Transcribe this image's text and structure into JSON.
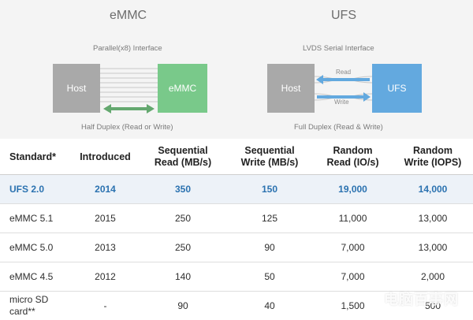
{
  "emmc_diagram": {
    "title": "eMMC",
    "interface": "Parallel(x8) Interface",
    "host_label": "Host",
    "device_label": "eMMC",
    "caption": "Half Duplex (Read or Write)",
    "colors": {
      "host": "#a9a9a9",
      "device": "#79c98a"
    }
  },
  "ufs_diagram": {
    "title": "UFS",
    "interface": "LVDS Serial Interface",
    "host_label": "Host",
    "device_label": "UFS",
    "read_label": "Read",
    "write_label": "Write",
    "caption": "Full Duplex (Read & Write)",
    "colors": {
      "host": "#a9a9a9",
      "device": "#63a9df"
    }
  },
  "table": {
    "headers": [
      [
        "Standard*"
      ],
      [
        "Introduced"
      ],
      [
        "Sequential",
        "Read (MB/s)"
      ],
      [
        "Sequential",
        "Write (MB/s)"
      ],
      [
        "Random",
        "Read (IO/s)"
      ],
      [
        "Random",
        "Write (IOPS)"
      ]
    ],
    "rows": [
      {
        "cells": [
          [
            "UFS 2.0"
          ],
          [
            "2014"
          ],
          [
            "350"
          ],
          [
            "150"
          ],
          [
            "19,000"
          ],
          [
            "14,000"
          ]
        ],
        "highlight": true
      },
      {
        "cells": [
          [
            "eMMC 5.1"
          ],
          [
            "2015"
          ],
          [
            "250"
          ],
          [
            "125"
          ],
          [
            "11,000"
          ],
          [
            "13,000"
          ]
        ],
        "highlight": false
      },
      {
        "cells": [
          [
            "eMMC 5.0"
          ],
          [
            "2013"
          ],
          [
            "250"
          ],
          [
            "90"
          ],
          [
            "7,000"
          ],
          [
            "13,000"
          ]
        ],
        "highlight": false
      },
      {
        "cells": [
          [
            "eMMC 4.5"
          ],
          [
            "2012"
          ],
          [
            "140"
          ],
          [
            "50"
          ],
          [
            "7,000"
          ],
          [
            "2,000"
          ]
        ],
        "highlight": false
      },
      {
        "cells": [
          [
            "micro SD",
            "card**"
          ],
          [
            "-"
          ],
          [
            "90"
          ],
          [
            "40"
          ],
          [
            "1,500"
          ],
          [
            "500"
          ]
        ],
        "highlight": false
      }
    ],
    "highlight_color": "#2b72b0"
  },
  "watermark": "电脑百事网"
}
